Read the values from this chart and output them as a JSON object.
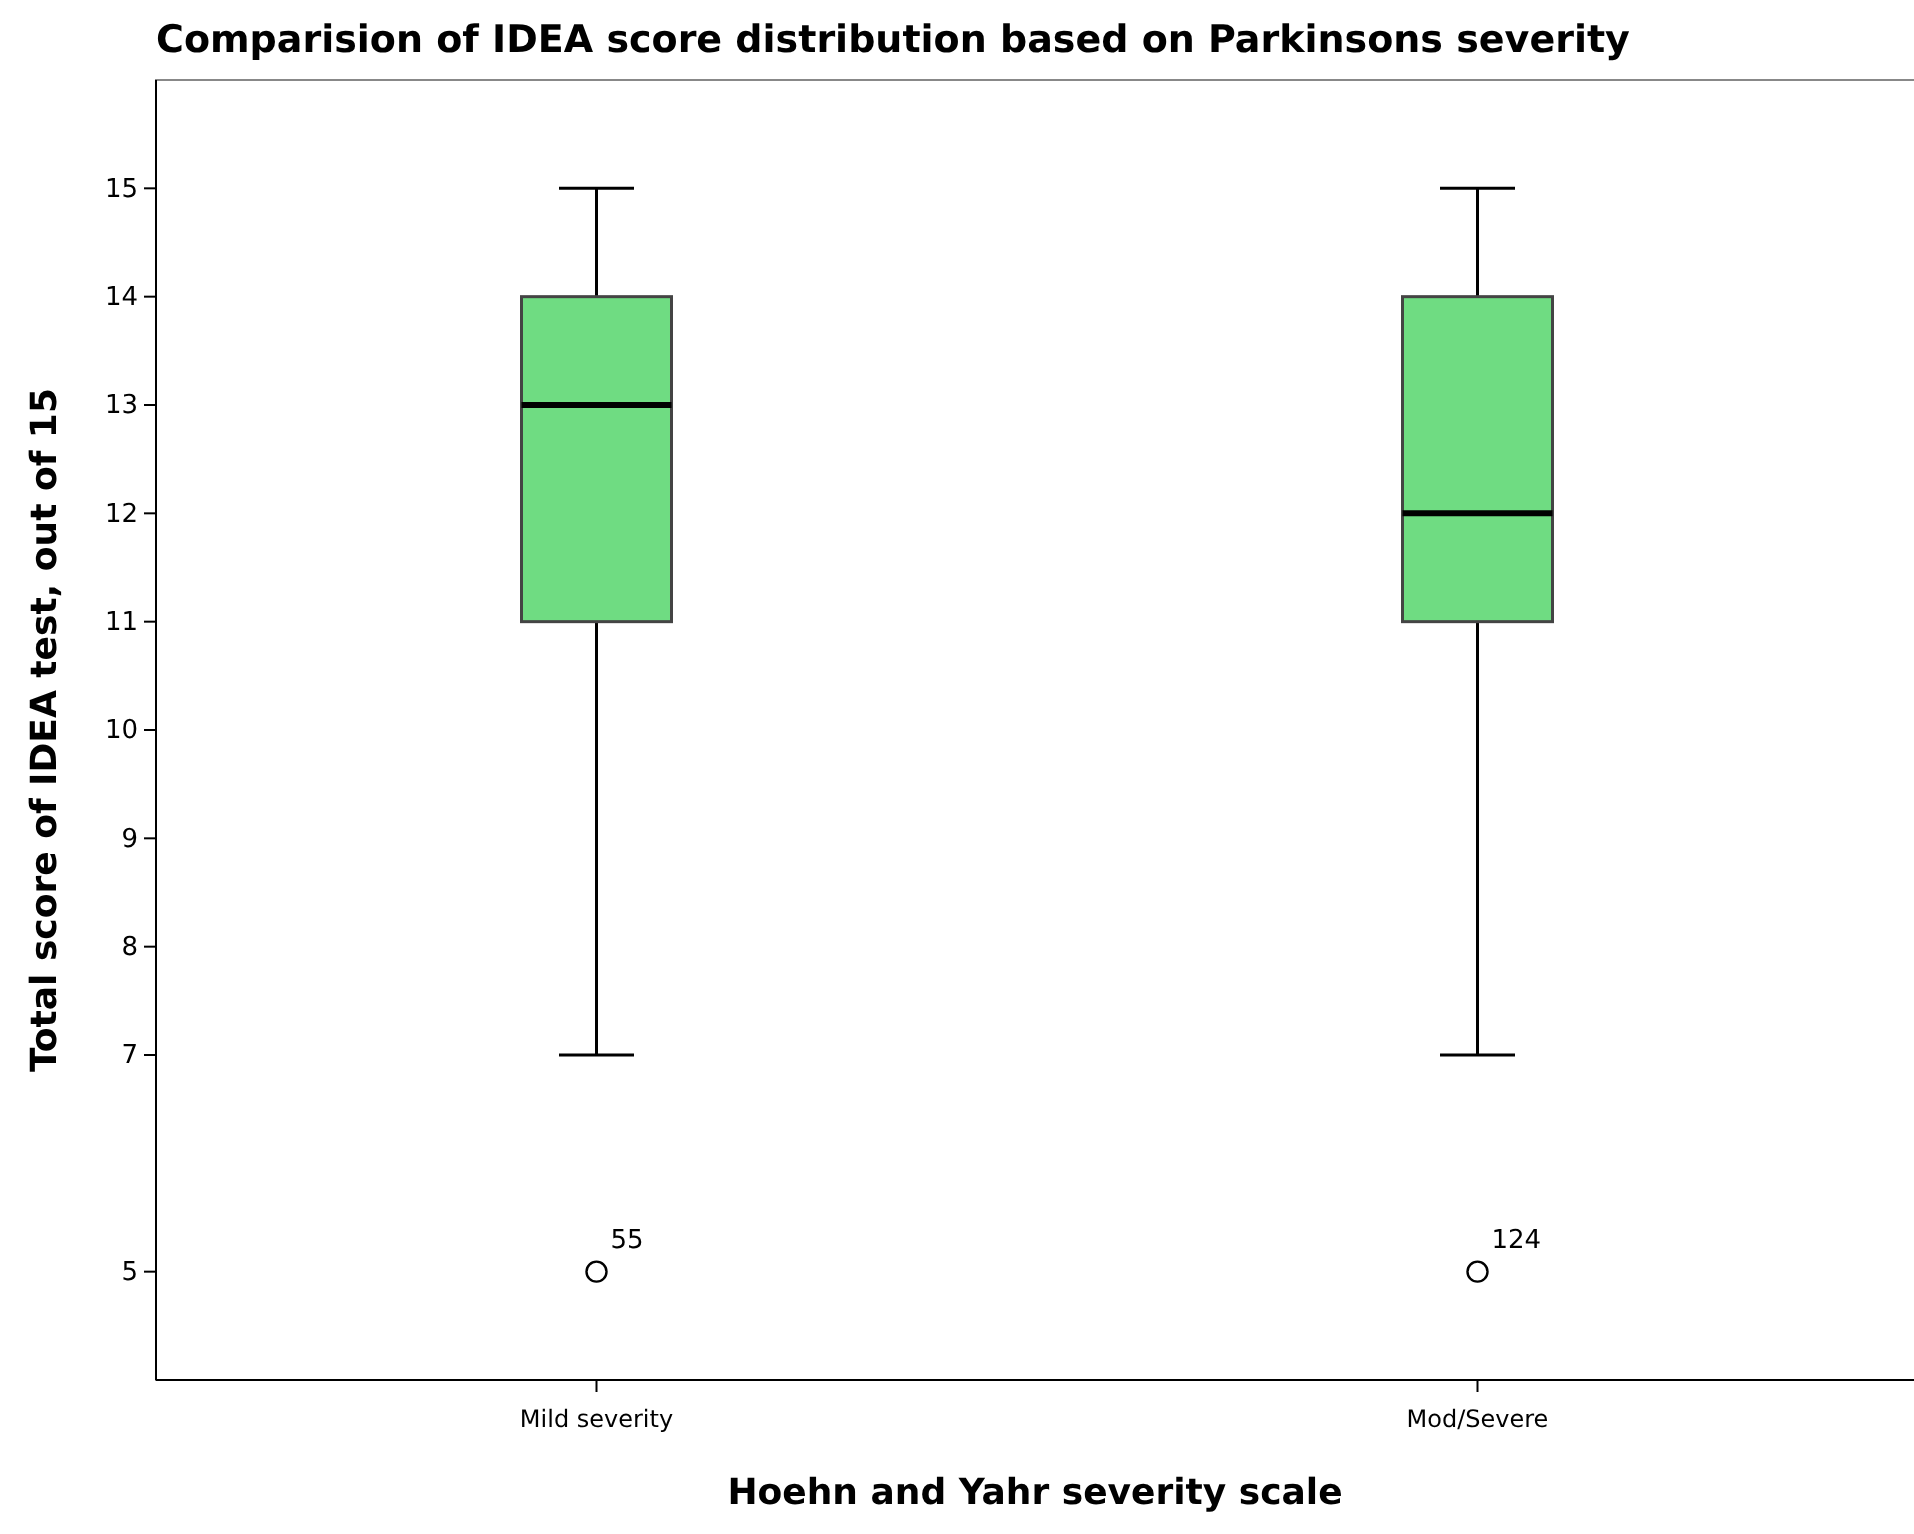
{
  "chart_data": {
    "type": "box",
    "title": "Comparision of IDEA score distribution based on Parkinsons severity",
    "xlabel": "Hoehn and Yahr severity scale",
    "ylabel": "Total score of IDEA test, out of 15",
    "categories": [
      "Mild severity",
      "Mod/Severe"
    ],
    "boxes": [
      {
        "low": 7,
        "q1": 11,
        "median": 13,
        "q3": 14,
        "high": 15,
        "outliers": [
          5
        ]
      },
      {
        "low": 7,
        "q1": 11,
        "median": 12,
        "q3": 14,
        "high": 15,
        "outliers": [
          5
        ]
      }
    ],
    "color": "#6fdc82",
    "ylim": [
      4,
      16
    ],
    "yticks": [
      5,
      7,
      8,
      9,
      10,
      11,
      12,
      13,
      14,
      15
    ],
    "grid": false,
    "annotations": [
      "55",
      "124"
    ]
  }
}
